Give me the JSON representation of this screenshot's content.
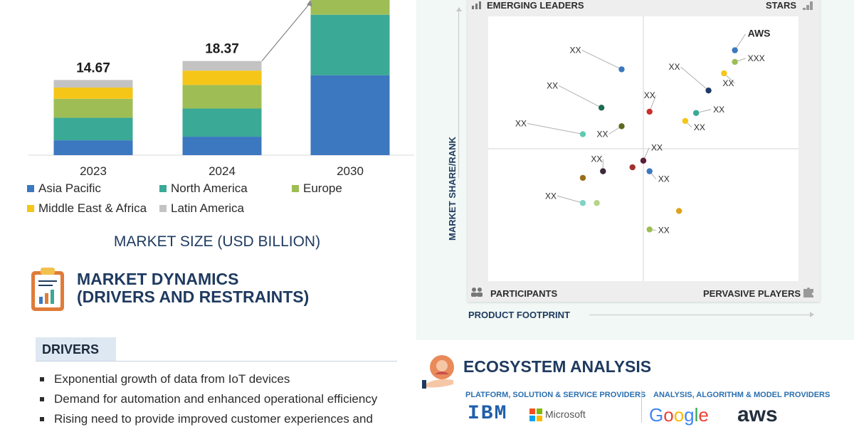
{
  "chart_data": [
    {
      "type": "bar",
      "stacked": true,
      "categories": [
        "2023",
        "2024",
        "2030"
      ],
      "series": [
        {
          "name": "Asia Pacific",
          "color": "#3b78bf",
          "values": [
            2.9,
            3.6,
            15.6
          ]
        },
        {
          "name": "North America",
          "color": "#3aa995",
          "values": [
            4.4,
            5.5,
            11.8
          ]
        },
        {
          "name": "Europe",
          "color": "#9ebe55",
          "values": [
            3.7,
            4.6,
            9.1
          ]
        },
        {
          "name": "Middle East & Africa",
          "color": "#f5c518",
          "values": [
            2.2,
            2.8,
            4.3
          ]
        },
        {
          "name": "Latin America",
          "color": "#c3c3c3",
          "values": [
            1.47,
            1.87,
            2.8
          ]
        }
      ],
      "data_labels": [
        "14.67",
        "18.37",
        ""
      ],
      "xlabel": "MARKET SIZE (USD BILLION)",
      "legend_position": "bottom"
    },
    {
      "type": "scatter",
      "xlabel": "PRODUCT FOOTPRINT",
      "ylabel": "MARKET SHARE/RANK",
      "xlim": [
        0,
        100
      ],
      "ylim": [
        0,
        100
      ],
      "quadrants": [
        "EMERGING LEADERS",
        "STARS",
        "PARTICIPANTS",
        "PERVASIVE PLAYERS"
      ],
      "points": [
        {
          "x": 79.5,
          "y": 87.2,
          "color": "#3b78bf",
          "label": "AWS",
          "bold": true
        },
        {
          "x": 79.5,
          "y": 82.8,
          "color": "#9ebe55",
          "label": "XXX"
        },
        {
          "x": 76.0,
          "y": 78.5,
          "color": "#f5c518",
          "label": "XX"
        },
        {
          "x": 71.0,
          "y": 72.0,
          "color": "#1f3a6a",
          "label": "XX"
        },
        {
          "x": 67.0,
          "y": 63.5,
          "color": "#3aa995",
          "label": "XX"
        },
        {
          "x": 63.5,
          "y": 60.5,
          "color": "#f5c518",
          "label": "XX"
        },
        {
          "x": 52.0,
          "y": 64.0,
          "color": "#c9302c",
          "label": "XX"
        },
        {
          "x": 43.0,
          "y": 80.0,
          "color": "#3b78bf",
          "label": "XX"
        },
        {
          "x": 36.5,
          "y": 65.5,
          "color": "#1e6b54",
          "label": "XX"
        },
        {
          "x": 43.0,
          "y": 58.5,
          "color": "#5b6a1e",
          "label": "XX"
        },
        {
          "x": 30.5,
          "y": 55.5,
          "color": "#5fc9b3",
          "label": "XX"
        },
        {
          "x": 50.0,
          "y": 45.5,
          "color": "#5a1f3a",
          "label": "XX"
        },
        {
          "x": 46.5,
          "y": 43.0,
          "color": "#a0302c",
          "label": ""
        },
        {
          "x": 52.0,
          "y": 41.5,
          "color": "#3b78bf",
          "label": "XX"
        },
        {
          "x": 37.0,
          "y": 41.5,
          "color": "#3a2a3a",
          "label": "XX"
        },
        {
          "x": 30.5,
          "y": 39.0,
          "color": "#9a6d1a",
          "label": ""
        },
        {
          "x": 30.5,
          "y": 29.5,
          "color": "#7fd3c4",
          "label": "XX"
        },
        {
          "x": 35.0,
          "y": 29.5,
          "color": "#b5d48a",
          "label": ""
        },
        {
          "x": 61.5,
          "y": 26.5,
          "color": "#e0a21a",
          "label": ""
        },
        {
          "x": 52.0,
          "y": 19.5,
          "color": "#9ebe55",
          "label": "XX"
        }
      ]
    }
  ],
  "left": {
    "dynamics_title_line1": "MARKET DYNAMICS",
    "dynamics_title_line2": "(DRIVERS AND RESTRAINTS)",
    "drivers_label": "DRIVERS",
    "drivers": [
      "Exponential growth of data from IoT devices",
      "Demand for automation and enhanced operational efficiency",
      "Rising need to provide improved customer experiences and"
    ]
  },
  "right": {
    "ecosystem_title": "ECOSYSTEM ANALYSIS",
    "provider_group_1": "PLATFORM, SOLUTION & SERVICE PROVIDERS",
    "provider_group_2": "ANALYSIS, ALGORITHM & MODEL PROVIDERS",
    "logos": [
      "IBM",
      "Microsoft",
      "Google",
      "aws"
    ]
  }
}
